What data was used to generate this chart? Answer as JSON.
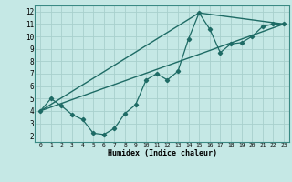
{
  "xlabel": "Humidex (Indice chaleur)",
  "bg_color": "#c5e8e5",
  "grid_color": "#a8d0cc",
  "line_color": "#1e6b65",
  "xlim": [
    -0.5,
    23.5
  ],
  "ylim": [
    1.5,
    12.5
  ],
  "xticks": [
    0,
    1,
    2,
    3,
    4,
    5,
    6,
    7,
    8,
    9,
    10,
    11,
    12,
    13,
    14,
    15,
    16,
    17,
    18,
    19,
    20,
    21,
    22,
    23
  ],
  "yticks": [
    2,
    3,
    4,
    5,
    6,
    7,
    8,
    9,
    10,
    11,
    12
  ],
  "series1_x": [
    0,
    1,
    2,
    3,
    4,
    5,
    6,
    7,
    8,
    9,
    10,
    11,
    12,
    13,
    14,
    15,
    16,
    17,
    18,
    19,
    20,
    21,
    22,
    23
  ],
  "series1_y": [
    4.0,
    5.0,
    4.4,
    3.7,
    3.3,
    2.2,
    2.1,
    2.6,
    3.8,
    4.5,
    6.5,
    7.0,
    6.5,
    7.2,
    9.8,
    11.9,
    10.6,
    8.7,
    9.4,
    9.5,
    10.0,
    10.8,
    11.0,
    11.0
  ],
  "series2_x": [
    0,
    15,
    23
  ],
  "series2_y": [
    4.0,
    11.9,
    11.0
  ],
  "series3_x": [
    0,
    23
  ],
  "series3_y": [
    4.0,
    11.0
  ]
}
